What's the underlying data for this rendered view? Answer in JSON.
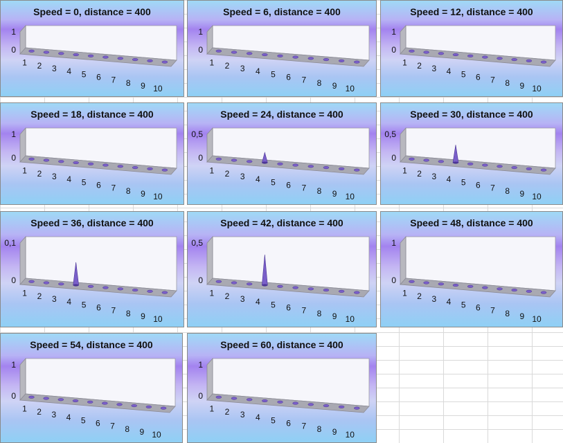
{
  "chart_data": [
    {
      "type": "bar",
      "shape": "cone",
      "title": "Speed = 0, distance = 400",
      "categories": [
        "1",
        "2",
        "3",
        "4",
        "5",
        "6",
        "7",
        "8",
        "9",
        "10"
      ],
      "values": [
        0,
        0,
        0,
        0,
        0,
        0,
        0,
        0,
        0,
        0
      ],
      "ytick_labels": [
        "0",
        "1"
      ],
      "ylim": [
        0,
        1
      ]
    },
    {
      "type": "bar",
      "shape": "cone",
      "title": "Speed = 6, distance = 400",
      "categories": [
        "1",
        "2",
        "3",
        "4",
        "5",
        "6",
        "7",
        "8",
        "9",
        "10"
      ],
      "values": [
        0,
        0,
        0,
        0,
        0,
        0,
        0,
        0,
        0,
        0
      ],
      "ytick_labels": [
        "0",
        "1"
      ],
      "ylim": [
        0,
        1
      ]
    },
    {
      "type": "bar",
      "shape": "cone",
      "title": "Speed = 12, distance = 400",
      "categories": [
        "1",
        "2",
        "3",
        "4",
        "5",
        "6",
        "7",
        "8",
        "9",
        "10"
      ],
      "values": [
        0,
        0,
        0,
        0,
        0,
        0,
        0,
        0,
        0,
        0
      ],
      "ytick_labels": [
        "0",
        "1"
      ],
      "ylim": [
        0,
        1
      ]
    },
    {
      "type": "bar",
      "shape": "cone",
      "title": "Speed = 18, distance = 400",
      "categories": [
        "1",
        "2",
        "3",
        "4",
        "5",
        "6",
        "7",
        "8",
        "9",
        "10"
      ],
      "values": [
        0,
        0,
        0,
        0,
        0,
        0,
        0,
        0,
        0,
        0
      ],
      "ytick_labels": [
        "0",
        "1"
      ],
      "ylim": [
        0,
        1
      ]
    },
    {
      "type": "bar",
      "shape": "cone",
      "title": "Speed = 24, distance = 400",
      "categories": [
        "1",
        "2",
        "3",
        "4",
        "5",
        "6",
        "7",
        "8",
        "9",
        "10"
      ],
      "values": [
        0,
        0,
        0,
        0.2,
        0,
        0,
        0,
        0,
        0,
        0
      ],
      "ytick_labels": [
        "0",
        "0,5"
      ],
      "ylim": [
        0,
        0.5
      ]
    },
    {
      "type": "bar",
      "shape": "cone",
      "title": "Speed = 30, distance = 400",
      "categories": [
        "1",
        "2",
        "3",
        "4",
        "5",
        "6",
        "7",
        "8",
        "9",
        "10"
      ],
      "values": [
        0,
        0,
        0,
        0.35,
        0,
        0,
        0,
        0,
        0,
        0
      ],
      "ytick_labels": [
        "0",
        "0,5"
      ],
      "ylim": [
        0,
        0.5
      ]
    },
    {
      "type": "bar",
      "shape": "cone",
      "title": "Speed = 36, distance = 400",
      "categories": [
        "1",
        "2",
        "3",
        "4",
        "5",
        "6",
        "7",
        "8",
        "9",
        "10"
      ],
      "values": [
        0,
        0,
        0,
        0.06,
        0,
        0,
        0,
        0,
        0,
        0
      ],
      "ytick_labels": [
        "0",
        "0,1"
      ],
      "ylim": [
        0,
        0.1
      ]
    },
    {
      "type": "bar",
      "shape": "cone",
      "title": "Speed = 42, distance = 400",
      "categories": [
        "1",
        "2",
        "3",
        "4",
        "5",
        "6",
        "7",
        "8",
        "9",
        "10"
      ],
      "values": [
        0,
        0,
        0,
        0.4,
        0,
        0,
        0,
        0,
        0,
        0
      ],
      "ytick_labels": [
        "0",
        "0,5"
      ],
      "ylim": [
        0,
        0.5
      ]
    },
    {
      "type": "bar",
      "shape": "cone",
      "title": "Speed = 48, distance = 400",
      "categories": [
        "1",
        "2",
        "3",
        "4",
        "5",
        "6",
        "7",
        "8",
        "9",
        "10"
      ],
      "values": [
        0,
        0,
        0,
        0,
        0,
        0,
        0,
        0,
        0,
        0
      ],
      "ytick_labels": [
        "0",
        "1"
      ],
      "ylim": [
        0,
        1
      ]
    },
    {
      "type": "bar",
      "shape": "cone",
      "title": "Speed = 54, distance = 400",
      "categories": [
        "1",
        "2",
        "3",
        "4",
        "5",
        "6",
        "7",
        "8",
        "9",
        "10"
      ],
      "values": [
        0,
        0,
        0,
        0,
        0,
        0,
        0,
        0,
        0,
        0
      ],
      "ytick_labels": [
        "0",
        "1"
      ],
      "ylim": [
        0,
        1
      ]
    },
    {
      "type": "bar",
      "shape": "cone",
      "title": "Speed = 60, distance = 400",
      "categories": [
        "1",
        "2",
        "3",
        "4",
        "5",
        "6",
        "7",
        "8",
        "9",
        "10"
      ],
      "values": [
        0,
        0,
        0,
        0,
        0,
        0,
        0,
        0,
        0,
        0
      ],
      "ytick_labels": [
        "0",
        "1"
      ],
      "ylim": [
        0,
        1
      ]
    }
  ],
  "colors": {
    "cone_fill": "#7a5fc9",
    "cone_dark": "#4b3596",
    "back_wall": "#f6f6fb",
    "side_wall": "#b8b8bf",
    "floor": "#a9a9b2"
  }
}
